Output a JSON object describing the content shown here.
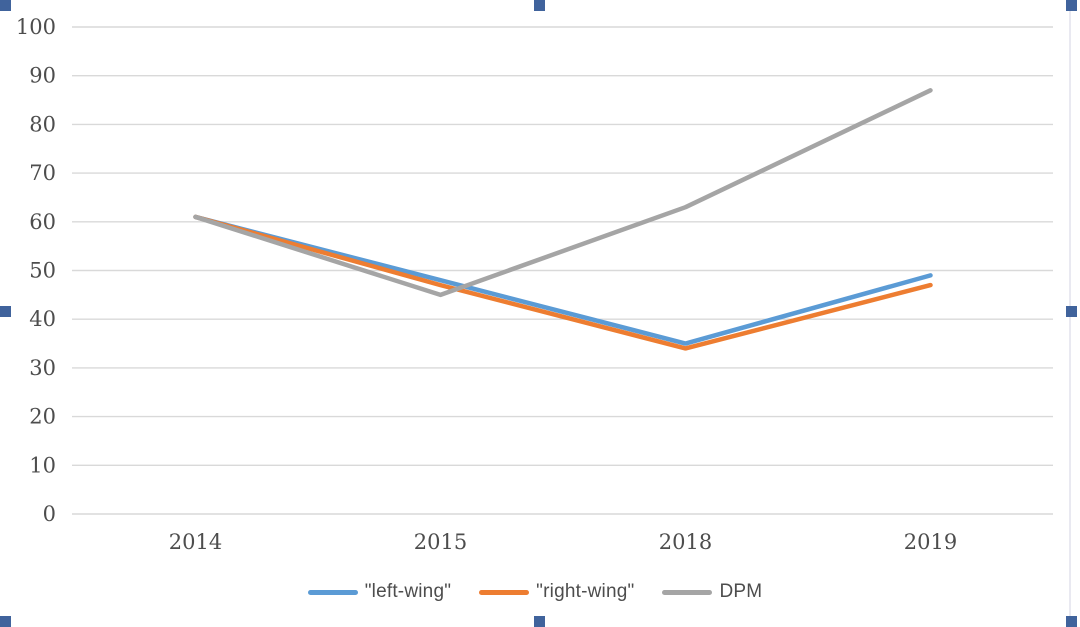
{
  "chart_data": {
    "type": "line",
    "title": "",
    "categories": [
      "2014",
      "2015",
      "2018",
      "2019"
    ],
    "series": [
      {
        "id": "left-wing",
        "name": "\"left-wing\"",
        "color": "#5B9BD5",
        "values": [
          61,
          48,
          35,
          49
        ]
      },
      {
        "id": "right-wing",
        "name": "\"right-wing\"",
        "color": "#ED7D31",
        "values": [
          61,
          47,
          34,
          47
        ]
      },
      {
        "id": "dpm",
        "name": "DPM",
        "color": "#A5A5A5",
        "values": [
          61,
          45,
          63,
          87
        ]
      }
    ],
    "xlabel": "",
    "ylabel": "",
    "ylim": [
      0,
      100
    ],
    "ytick_step": 10,
    "yticks": [
      0,
      10,
      20,
      30,
      40,
      50,
      60,
      70,
      80,
      90,
      100
    ],
    "grid": "horizontal",
    "gridline_color": "#D9D9D9",
    "tick_color": "#4D4D4D",
    "legend_position": "bottom"
  },
  "selection": {
    "handle_color": "#40639C",
    "border_color": "#E9E9F1"
  }
}
